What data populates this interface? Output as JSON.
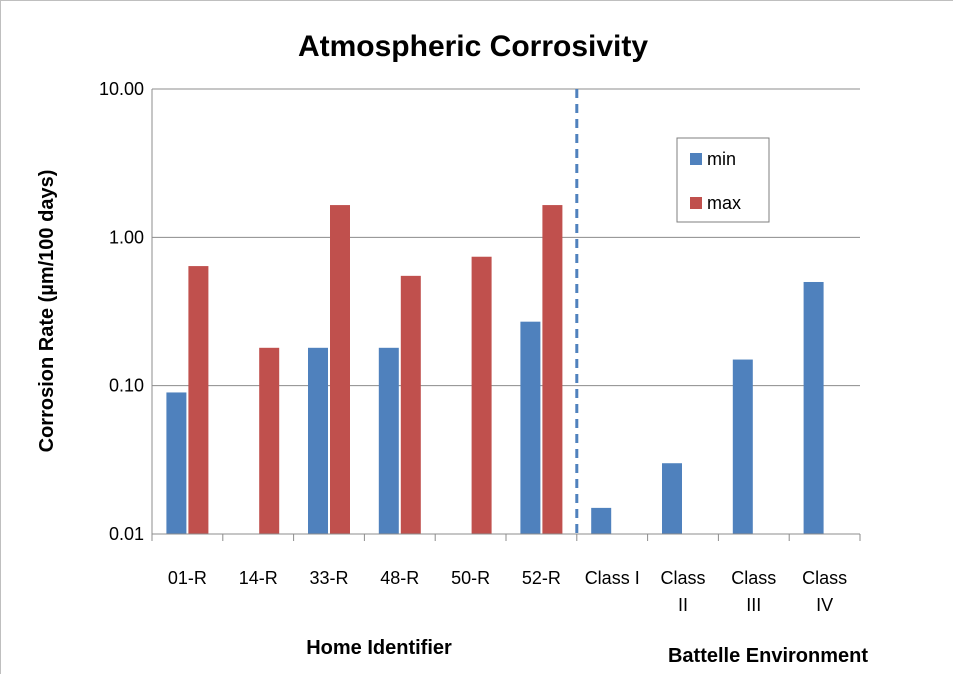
{
  "chart_data": {
    "type": "bar",
    "title": "Atmospheric Corrosivity",
    "ylabel": "Corrosion Rate (µm/100 days)",
    "xlabels": [
      "Home Identifier",
      "Battelle Environment"
    ],
    "yscale": "log",
    "ylim": [
      0.01,
      10
    ],
    "yticks": [
      "0.01",
      "0.10",
      "1.00",
      "10.00"
    ],
    "ytick_values": [
      0.01,
      0.1,
      1,
      10
    ],
    "grid": true,
    "legend_position": "top-right",
    "categories": [
      {
        "lines": [
          "01-R"
        ]
      },
      {
        "lines": [
          "14-R"
        ]
      },
      {
        "lines": [
          "33-R"
        ]
      },
      {
        "lines": [
          "48-R"
        ]
      },
      {
        "lines": [
          "50-R"
        ]
      },
      {
        "lines": [
          "52-R"
        ]
      },
      {
        "lines": [
          "Class I"
        ]
      },
      {
        "lines": [
          "Class",
          "II"
        ]
      },
      {
        "lines": [
          "Class",
          "III"
        ]
      },
      {
        "lines": [
          "Class",
          "IV"
        ]
      }
    ],
    "series": [
      {
        "name": "min",
        "color": "#4f81bd",
        "values": [
          0.09,
          null,
          0.18,
          0.18,
          null,
          0.27,
          0.015,
          0.03,
          0.15,
          0.5
        ]
      },
      {
        "name": "max",
        "color": "#c0504d",
        "values": [
          0.64,
          0.18,
          1.65,
          0.55,
          0.74,
          1.65,
          null,
          null,
          null,
          null
        ]
      }
    ],
    "divider": {
      "between_categories": [
        5,
        6
      ],
      "style": "dashed",
      "color": "#4f81bd"
    }
  }
}
